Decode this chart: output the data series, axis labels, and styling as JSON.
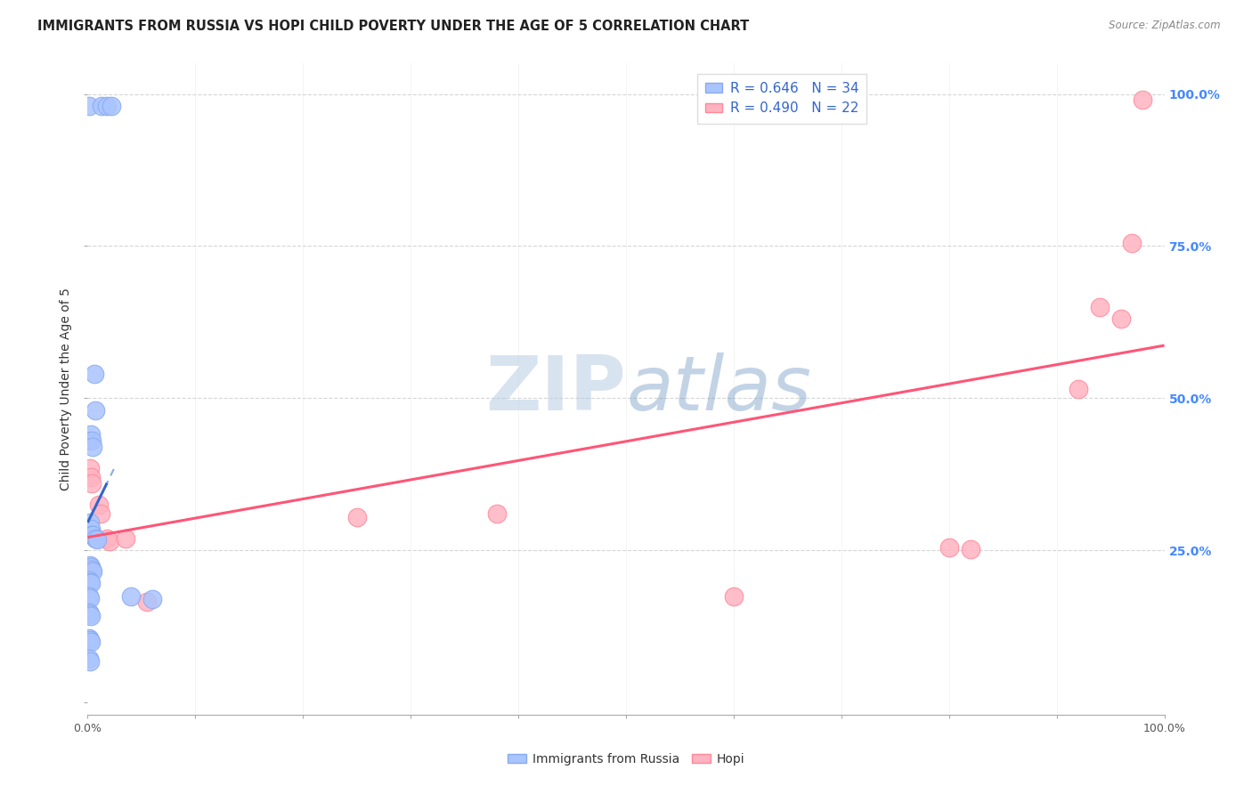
{
  "title": "IMMIGRANTS FROM RUSSIA VS HOPI CHILD POVERTY UNDER THE AGE OF 5 CORRELATION CHART",
  "source": "Source: ZipAtlas.com",
  "ylabel": "Child Poverty Under the Age of 5",
  "xlim": [
    0.0,
    1.0
  ],
  "ylim": [
    -0.02,
    1.05
  ],
  "yticks": [
    0.0,
    0.25,
    0.5,
    0.75,
    1.0
  ],
  "yticklabels_left": [
    "",
    "",
    "",
    "",
    ""
  ],
  "yticklabels_right": [
    "",
    "25.0%",
    "50.0%",
    "75.0%",
    "100.0%"
  ],
  "xtick_positions": [
    0.0,
    0.1,
    0.2,
    0.3,
    0.4,
    0.5,
    0.6,
    0.7,
    0.8,
    0.9,
    1.0
  ],
  "watermark_text": "ZIPatlas",
  "russia_scatter": [
    [
      0.0015,
      0.98
    ],
    [
      0.013,
      0.98
    ],
    [
      0.018,
      0.98
    ],
    [
      0.022,
      0.98
    ],
    [
      0.006,
      0.54
    ],
    [
      0.007,
      0.48
    ],
    [
      0.003,
      0.44
    ],
    [
      0.004,
      0.43
    ],
    [
      0.005,
      0.42
    ],
    [
      0.002,
      0.295
    ],
    [
      0.003,
      0.285
    ],
    [
      0.004,
      0.275
    ],
    [
      0.005,
      0.275
    ],
    [
      0.007,
      0.27
    ],
    [
      0.009,
      0.268
    ],
    [
      0.002,
      0.225
    ],
    [
      0.003,
      0.222
    ],
    [
      0.004,
      0.218
    ],
    [
      0.005,
      0.215
    ],
    [
      0.001,
      0.2
    ],
    [
      0.002,
      0.198
    ],
    [
      0.003,
      0.196
    ],
    [
      0.001,
      0.175
    ],
    [
      0.002,
      0.172
    ],
    [
      0.001,
      0.148
    ],
    [
      0.002,
      0.145
    ],
    [
      0.003,
      0.142
    ],
    [
      0.001,
      0.105
    ],
    [
      0.002,
      0.102
    ],
    [
      0.003,
      0.1
    ],
    [
      0.001,
      0.072
    ],
    [
      0.002,
      0.068
    ],
    [
      0.04,
      0.175
    ],
    [
      0.06,
      0.17
    ]
  ],
  "hopi_scatter": [
    [
      0.001,
      0.43
    ],
    [
      0.002,
      0.385
    ],
    [
      0.003,
      0.37
    ],
    [
      0.004,
      0.36
    ],
    [
      0.01,
      0.325
    ],
    [
      0.012,
      0.31
    ],
    [
      0.018,
      0.27
    ],
    [
      0.02,
      0.265
    ],
    [
      0.035,
      0.27
    ],
    [
      0.25,
      0.305
    ],
    [
      0.38,
      0.31
    ],
    [
      0.6,
      0.175
    ],
    [
      0.8,
      0.255
    ],
    [
      0.82,
      0.252
    ],
    [
      0.92,
      0.515
    ],
    [
      0.94,
      0.65
    ],
    [
      0.96,
      0.63
    ],
    [
      0.97,
      0.755
    ],
    [
      0.98,
      0.99
    ],
    [
      0.001,
      0.222
    ],
    [
      0.002,
      0.215
    ],
    [
      0.055,
      0.165
    ]
  ],
  "russia_color": "#3366cc",
  "hopi_color": "#ff5577",
  "russia_scatter_facecolor": "#aac4ff",
  "hopi_scatter_facecolor": "#ffb3c1",
  "russia_scatter_edgecolor": "#88aaee",
  "hopi_scatter_edgecolor": "#ff8899",
  "right_tick_color": "#4488ff",
  "legend_label_color": "#3366cc",
  "background_color": "#ffffff",
  "grid_color": "#cccccc",
  "watermark_color": "#c8d8ee",
  "title_color": "#222222",
  "source_color": "#888888",
  "ylabel_color": "#333333"
}
